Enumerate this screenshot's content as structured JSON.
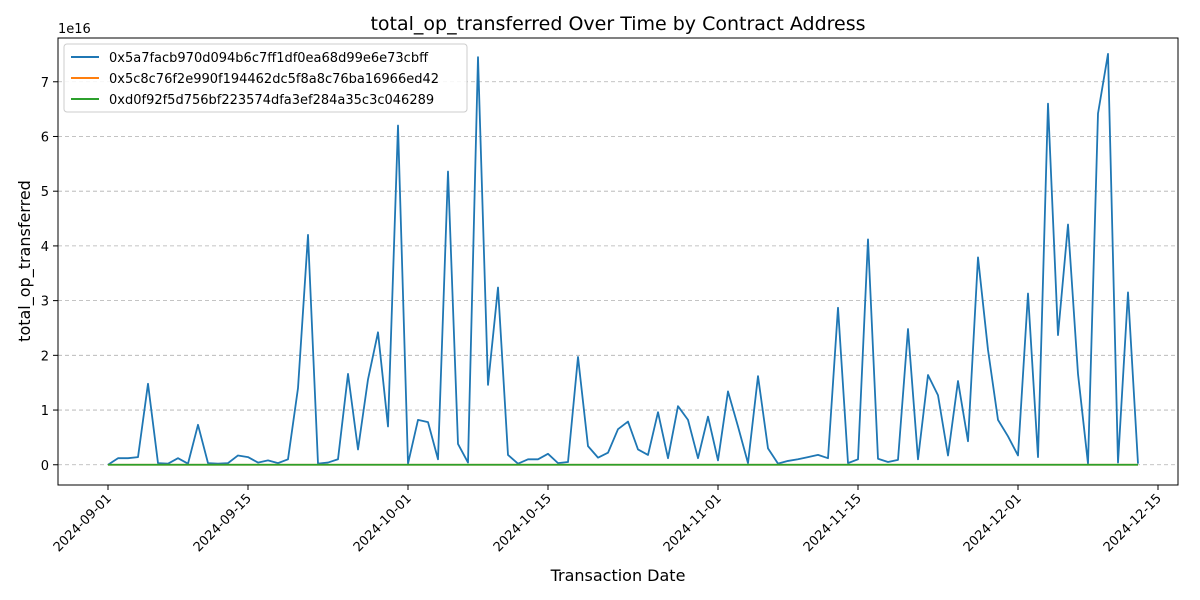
{
  "chart_data": {
    "type": "line",
    "title": "total_op_transferred Over Time by Contract Address",
    "xlabel": "Transaction Date",
    "ylabel": "total_op_transferred",
    "y_offset_label": "1e16",
    "y_scale_factor": 1e+16,
    "ylim": [
      -0.37,
      7.8
    ],
    "xlim": [
      "2024-08-27",
      "2024-12-17"
    ],
    "x_ticks": [
      "2024-09-01",
      "2024-09-15",
      "2024-10-01",
      "2024-10-15",
      "2024-11-01",
      "2024-11-15",
      "2024-12-01",
      "2024-12-15"
    ],
    "y_ticks": [
      0,
      1,
      2,
      3,
      4,
      5,
      6,
      7
    ],
    "grid": {
      "y": true,
      "x": false,
      "style": "dashed"
    },
    "legend_position": "top-left",
    "series": [
      {
        "name": "0x5a7facb970d094b6c7ff1df0ea68d99e6e73cbff",
        "color": "#1f77b4",
        "x": [
          "2024-09-01",
          "2024-09-02",
          "2024-09-03",
          "2024-09-04",
          "2024-09-05",
          "2024-09-06",
          "2024-09-07",
          "2024-09-08",
          "2024-09-09",
          "2024-09-10",
          "2024-09-11",
          "2024-09-12",
          "2024-09-13",
          "2024-09-14",
          "2024-09-15",
          "2024-09-16",
          "2024-09-17",
          "2024-09-18",
          "2024-09-19",
          "2024-09-20",
          "2024-09-21",
          "2024-09-22",
          "2024-09-23",
          "2024-09-24",
          "2024-09-25",
          "2024-09-26",
          "2024-09-27",
          "2024-09-28",
          "2024-09-29",
          "2024-09-30",
          "2024-10-01",
          "2024-10-02",
          "2024-10-03",
          "2024-10-04",
          "2024-10-05",
          "2024-10-06",
          "2024-10-07",
          "2024-10-08",
          "2024-10-09",
          "2024-10-10",
          "2024-10-11",
          "2024-10-12",
          "2024-10-13",
          "2024-10-14",
          "2024-10-15",
          "2024-10-16",
          "2024-10-17",
          "2024-10-18",
          "2024-10-19",
          "2024-10-20",
          "2024-10-21",
          "2024-10-22",
          "2024-10-23",
          "2024-10-24",
          "2024-10-25",
          "2024-10-26",
          "2024-10-27",
          "2024-10-28",
          "2024-10-29",
          "2024-10-30",
          "2024-10-31",
          "2024-11-01",
          "2024-11-02",
          "2024-11-03",
          "2024-11-04",
          "2024-11-05",
          "2024-11-06",
          "2024-11-07",
          "2024-11-08",
          "2024-11-09",
          "2024-11-10",
          "2024-11-11",
          "2024-11-12",
          "2024-11-13",
          "2024-11-14",
          "2024-11-15",
          "2024-11-16",
          "2024-11-17",
          "2024-11-18",
          "2024-11-19",
          "2024-11-20",
          "2024-11-21",
          "2024-11-22",
          "2024-11-23",
          "2024-11-24",
          "2024-11-25",
          "2024-11-26",
          "2024-11-27",
          "2024-11-28",
          "2024-11-29",
          "2024-11-30",
          "2024-12-01",
          "2024-12-02",
          "2024-12-03",
          "2024-12-04",
          "2024-12-05",
          "2024-12-06",
          "2024-12-07",
          "2024-12-08",
          "2024-12-09",
          "2024-12-10",
          "2024-12-11",
          "2024-12-12",
          "2024-12-13"
        ],
        "values": [
          0.0,
          0.12,
          0.12,
          0.14,
          1.48,
          0.03,
          0.02,
          0.12,
          0.02,
          0.73,
          0.03,
          0.02,
          0.03,
          0.17,
          0.14,
          0.04,
          0.08,
          0.03,
          0.1,
          1.4,
          4.2,
          0.02,
          0.04,
          0.1,
          1.66,
          0.28,
          1.56,
          2.42,
          0.7,
          6.2,
          0.02,
          0.82,
          0.78,
          0.1,
          5.36,
          0.38,
          0.04,
          7.45,
          1.46,
          3.24,
          0.18,
          0.02,
          0.1,
          0.1,
          0.2,
          0.03,
          0.05,
          1.97,
          0.34,
          0.13,
          0.22,
          0.65,
          0.79,
          0.28,
          0.18,
          0.96,
          0.12,
          1.07,
          0.82,
          0.12,
          0.88,
          0.08,
          1.34,
          0.7,
          0.03,
          1.62,
          0.3,
          0.02,
          0.07,
          0.1,
          0.14,
          0.18,
          0.12,
          2.87,
          0.03,
          0.1,
          4.12,
          0.11,
          0.05,
          0.09,
          2.48,
          0.1,
          1.64,
          1.27,
          0.17,
          1.53,
          0.43,
          3.79,
          2.1,
          0.82,
          0.52,
          0.17,
          3.13,
          0.14,
          6.6,
          2.37,
          4.39,
          1.66,
          0.02,
          6.42,
          7.51,
          0.04,
          3.15,
          0.02
        ]
      },
      {
        "name": "0x5c8c76f2e990f194462dc5f8a8c76ba16966ed42",
        "color": "#ff7f0e",
        "x": [
          "2024-09-01",
          "2024-12-13"
        ],
        "values": [
          0.0,
          0.0
        ]
      },
      {
        "name": "0xd0f92f5d756bf223574dfa3ef284a35c3c046289",
        "color": "#2ca02c",
        "x": [
          "2024-09-01",
          "2024-12-13"
        ],
        "values": [
          0.0,
          0.0
        ]
      }
    ]
  }
}
